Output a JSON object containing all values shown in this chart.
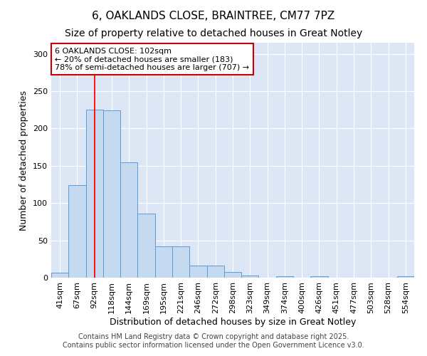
{
  "title1": "6, OAKLANDS CLOSE, BRAINTREE, CM77 7PZ",
  "title2": "Size of property relative to detached houses in Great Notley",
  "xlabel": "Distribution of detached houses by size in Great Notley",
  "ylabel": "Number of detached properties",
  "categories": [
    "41sqm",
    "67sqm",
    "92sqm",
    "118sqm",
    "144sqm",
    "169sqm",
    "195sqm",
    "221sqm",
    "246sqm",
    "272sqm",
    "298sqm",
    "323sqm",
    "349sqm",
    "374sqm",
    "400sqm",
    "426sqm",
    "451sqm",
    "477sqm",
    "503sqm",
    "528sqm",
    "554sqm"
  ],
  "values": [
    7,
    124,
    225,
    224,
    155,
    86,
    42,
    42,
    16,
    16,
    8,
    3,
    0,
    2,
    0,
    2,
    0,
    0,
    0,
    0,
    2
  ],
  "bar_color": "#c5d9f1",
  "bar_edge_color": "#5b9bd5",
  "red_line_index": 2,
  "annotation_text": "6 OAKLANDS CLOSE: 102sqm\n← 20% of detached houses are smaller (183)\n78% of semi-detached houses are larger (707) →",
  "annotation_box_facecolor": "#ffffff",
  "annotation_box_edgecolor": "#cc0000",
  "footnote1": "Contains HM Land Registry data © Crown copyright and database right 2025.",
  "footnote2": "Contains public sector information licensed under the Open Government Licence v3.0.",
  "ylim": [
    0,
    315
  ],
  "yticks": [
    0,
    50,
    100,
    150,
    200,
    250,
    300
  ],
  "plot_bg_color": "#dce6f5",
  "fig_bg_color": "#ffffff",
  "grid_color": "#ffffff",
  "title1_fontsize": 11,
  "title2_fontsize": 10,
  "xlabel_fontsize": 9,
  "ylabel_fontsize": 9,
  "tick_fontsize": 8,
  "footnote_fontsize": 7,
  "annot_fontsize": 8
}
